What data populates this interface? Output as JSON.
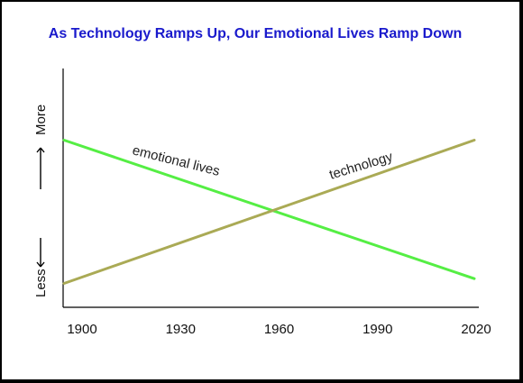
{
  "chart_data": {
    "type": "line",
    "title": "As Technology Ramps Up, Our Emotional Lives Ramp Down",
    "xlabel": "",
    "ylabel": "Less <—— ——> More",
    "ylabel_less": "Less",
    "ylabel_more": "More",
    "x_ticks": [
      "1900",
      "1930",
      "1960",
      "1990",
      "2020"
    ],
    "xlim": [
      1900,
      2020
    ],
    "ylim": [
      0,
      100
    ],
    "grid": false,
    "legend": "none",
    "series": [
      {
        "name": "emotional lives",
        "color": "#55ee44",
        "x": [
          1900,
          2020
        ],
        "y": [
          70,
          12
        ]
      },
      {
        "name": "technology",
        "color": "#aaaa55",
        "x": [
          1900,
          2020
        ],
        "y": [
          10,
          70
        ]
      }
    ]
  }
}
